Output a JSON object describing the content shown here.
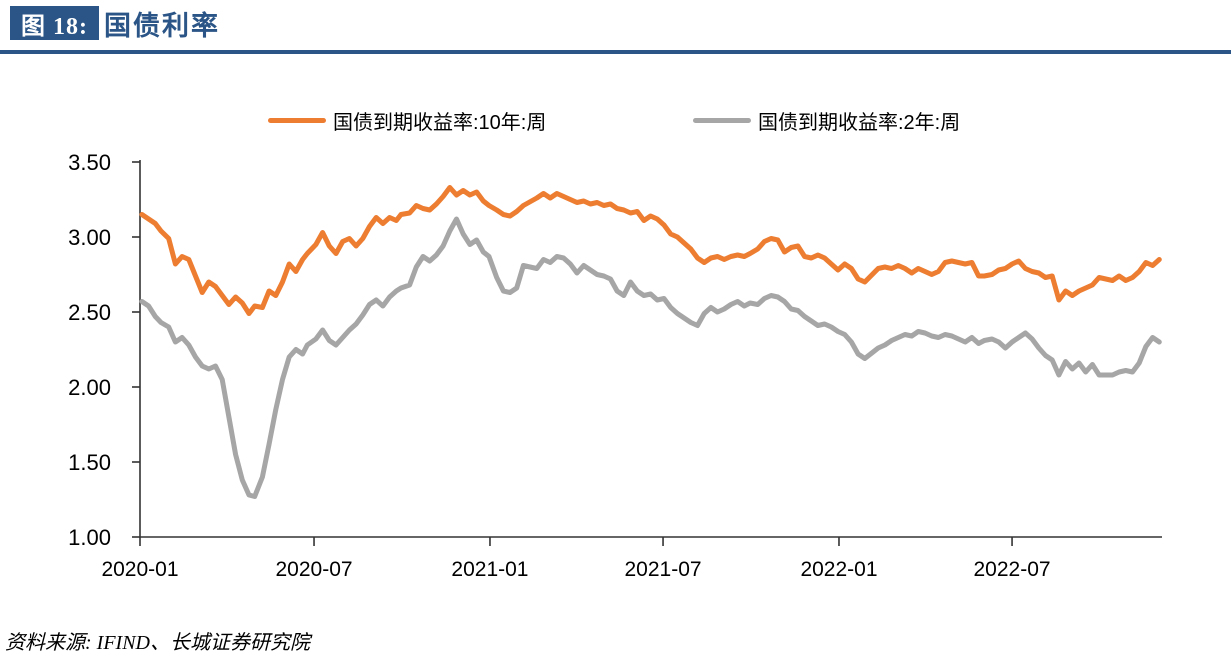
{
  "header": {
    "figure_label": "图 18:",
    "title": "国债利率"
  },
  "footer": {
    "source": "资料来源: IFIND、长城证券研究院"
  },
  "colors": {
    "navy": "#2B5586",
    "orange": "#ED7D31",
    "gray": "#A6A6A6",
    "axis": "#333333"
  },
  "chart_data": {
    "type": "line",
    "title": "国债利率",
    "grid": false,
    "legend_position": "top",
    "ylim": [
      1.0,
      3.5
    ],
    "y_ticks": [
      "1.00",
      "1.50",
      "2.00",
      "2.50",
      "3.00",
      "3.50"
    ],
    "x_ticks": [
      "2020-01",
      "2020-07",
      "2021-01",
      "2021-07",
      "2022-01",
      "2022-07"
    ],
    "x": [
      "2020-01-03",
      "2020-01-10",
      "2020-01-17",
      "2020-01-23",
      "2020-01-31",
      "2020-02-07",
      "2020-02-14",
      "2020-02-21",
      "2020-02-28",
      "2020-03-06",
      "2020-03-13",
      "2020-03-20",
      "2020-03-27",
      "2020-04-03",
      "2020-04-10",
      "2020-04-17",
      "2020-04-24",
      "2020-04-30",
      "2020-05-08",
      "2020-05-15",
      "2020-05-22",
      "2020-05-29",
      "2020-06-05",
      "2020-06-12",
      "2020-06-19",
      "2020-06-24",
      "2020-07-03",
      "2020-07-10",
      "2020-07-17",
      "2020-07-24",
      "2020-07-31",
      "2020-08-07",
      "2020-08-14",
      "2020-08-21",
      "2020-08-28",
      "2020-09-04",
      "2020-09-11",
      "2020-09-18",
      "2020-09-25",
      "2020-09-30",
      "2020-10-09",
      "2020-10-16",
      "2020-10-23",
      "2020-10-30",
      "2020-11-06",
      "2020-11-13",
      "2020-11-20",
      "2020-11-27",
      "2020-12-04",
      "2020-12-11",
      "2020-12-18",
      "2020-12-25",
      "2020-12-31",
      "2021-01-08",
      "2021-01-15",
      "2021-01-22",
      "2021-01-29",
      "2021-02-05",
      "2021-02-19",
      "2021-02-26",
      "2021-03-05",
      "2021-03-12",
      "2021-03-19",
      "2021-03-26",
      "2021-04-02",
      "2021-04-09",
      "2021-04-16",
      "2021-04-23",
      "2021-04-30",
      "2021-05-07",
      "2021-05-14",
      "2021-05-21",
      "2021-05-28",
      "2021-06-04",
      "2021-06-11",
      "2021-06-18",
      "2021-06-25",
      "2021-07-02",
      "2021-07-09",
      "2021-07-16",
      "2021-07-23",
      "2021-07-30",
      "2021-08-06",
      "2021-08-13",
      "2021-08-20",
      "2021-08-27",
      "2021-09-03",
      "2021-09-10",
      "2021-09-17",
      "2021-09-24",
      "2021-09-30",
      "2021-10-08",
      "2021-10-15",
      "2021-10-22",
      "2021-10-29",
      "2021-11-05",
      "2021-11-12",
      "2021-11-19",
      "2021-11-26",
      "2021-12-03",
      "2021-12-10",
      "2021-12-17",
      "2021-12-24",
      "2021-12-31",
      "2022-01-07",
      "2022-01-14",
      "2022-01-21",
      "2022-01-28",
      "2022-02-11",
      "2022-02-18",
      "2022-02-25",
      "2022-03-04",
      "2022-03-11",
      "2022-03-18",
      "2022-03-25",
      "2022-04-01",
      "2022-04-08",
      "2022-04-15",
      "2022-04-22",
      "2022-04-29",
      "2022-05-06",
      "2022-05-13",
      "2022-05-20",
      "2022-05-27",
      "2022-06-02",
      "2022-06-10",
      "2022-06-17",
      "2022-06-24",
      "2022-07-01",
      "2022-07-08",
      "2022-07-15",
      "2022-07-22",
      "2022-07-29",
      "2022-08-05",
      "2022-08-12",
      "2022-08-19",
      "2022-08-26",
      "2022-09-02",
      "2022-09-09",
      "2022-09-16",
      "2022-09-23",
      "2022-09-30",
      "2022-10-14",
      "2022-10-21",
      "2022-10-28",
      "2022-11-04",
      "2022-11-11",
      "2022-11-18",
      "2022-11-25",
      "2022-12-02"
    ],
    "series": [
      {
        "name": "国债到期收益率:10年:周",
        "color": "#ED7D31",
        "values": [
          3.15,
          3.12,
          3.09,
          3.04,
          2.99,
          2.82,
          2.87,
          2.85,
          2.74,
          2.63,
          2.7,
          2.67,
          2.61,
          2.55,
          2.6,
          2.56,
          2.49,
          2.54,
          2.53,
          2.64,
          2.61,
          2.7,
          2.82,
          2.77,
          2.85,
          2.89,
          2.95,
          3.03,
          2.94,
          2.89,
          2.97,
          2.99,
          2.94,
          2.99,
          3.07,
          3.13,
          3.09,
          3.13,
          3.11,
          3.15,
          3.16,
          3.21,
          3.19,
          3.18,
          3.22,
          3.27,
          3.33,
          3.28,
          3.31,
          3.28,
          3.3,
          3.24,
          3.21,
          3.18,
          3.15,
          3.14,
          3.17,
          3.21,
          3.26,
          3.29,
          3.26,
          3.29,
          3.27,
          3.25,
          3.23,
          3.24,
          3.22,
          3.23,
          3.21,
          3.22,
          3.19,
          3.18,
          3.16,
          3.17,
          3.11,
          3.14,
          3.12,
          3.08,
          3.02,
          3.0,
          2.96,
          2.92,
          2.86,
          2.83,
          2.86,
          2.87,
          2.85,
          2.87,
          2.88,
          2.87,
          2.89,
          2.92,
          2.97,
          2.99,
          2.98,
          2.9,
          2.93,
          2.94,
          2.87,
          2.86,
          2.88,
          2.86,
          2.82,
          2.78,
          2.82,
          2.79,
          2.72,
          2.7,
          2.79,
          2.8,
          2.79,
          2.81,
          2.79,
          2.76,
          2.79,
          2.77,
          2.75,
          2.77,
          2.83,
          2.84,
          2.83,
          2.82,
          2.83,
          2.74,
          2.74,
          2.75,
          2.78,
          2.79,
          2.82,
          2.84,
          2.79,
          2.77,
          2.76,
          2.73,
          2.74,
          2.58,
          2.64,
          2.61,
          2.64,
          2.66,
          2.68,
          2.73,
          2.71,
          2.74,
          2.71,
          2.73,
          2.77,
          2.83,
          2.81,
          2.85
        ]
      },
      {
        "name": "国债到期收益率:2年:周",
        "color": "#A6A6A6",
        "values": [
          2.57,
          2.54,
          2.47,
          2.43,
          2.4,
          2.3,
          2.33,
          2.28,
          2.2,
          2.14,
          2.12,
          2.14,
          2.05,
          1.8,
          1.55,
          1.38,
          1.28,
          1.27,
          1.4,
          1.62,
          1.85,
          2.05,
          2.2,
          2.25,
          2.22,
          2.28,
          2.32,
          2.38,
          2.31,
          2.28,
          2.33,
          2.38,
          2.42,
          2.48,
          2.55,
          2.58,
          2.54,
          2.6,
          2.64,
          2.66,
          2.68,
          2.8,
          2.87,
          2.84,
          2.88,
          2.94,
          3.04,
          3.12,
          3.02,
          2.95,
          2.98,
          2.9,
          2.87,
          2.73,
          2.64,
          2.63,
          2.66,
          2.81,
          2.79,
          2.85,
          2.83,
          2.87,
          2.86,
          2.82,
          2.76,
          2.81,
          2.78,
          2.75,
          2.74,
          2.72,
          2.64,
          2.61,
          2.7,
          2.64,
          2.61,
          2.62,
          2.58,
          2.59,
          2.53,
          2.49,
          2.46,
          2.43,
          2.41,
          2.49,
          2.53,
          2.5,
          2.52,
          2.55,
          2.57,
          2.54,
          2.56,
          2.55,
          2.59,
          2.61,
          2.6,
          2.57,
          2.52,
          2.51,
          2.47,
          2.44,
          2.41,
          2.42,
          2.4,
          2.37,
          2.35,
          2.3,
          2.22,
          2.19,
          2.26,
          2.28,
          2.31,
          2.33,
          2.35,
          2.34,
          2.37,
          2.36,
          2.34,
          2.33,
          2.35,
          2.34,
          2.32,
          2.3,
          2.33,
          2.29,
          2.31,
          2.32,
          2.3,
          2.26,
          2.3,
          2.33,
          2.36,
          2.32,
          2.26,
          2.21,
          2.18,
          2.08,
          2.17,
          2.12,
          2.16,
          2.1,
          2.15,
          2.08,
          2.08,
          2.1,
          2.11,
          2.1,
          2.16,
          2.27,
          2.33,
          2.3
        ]
      }
    ]
  }
}
